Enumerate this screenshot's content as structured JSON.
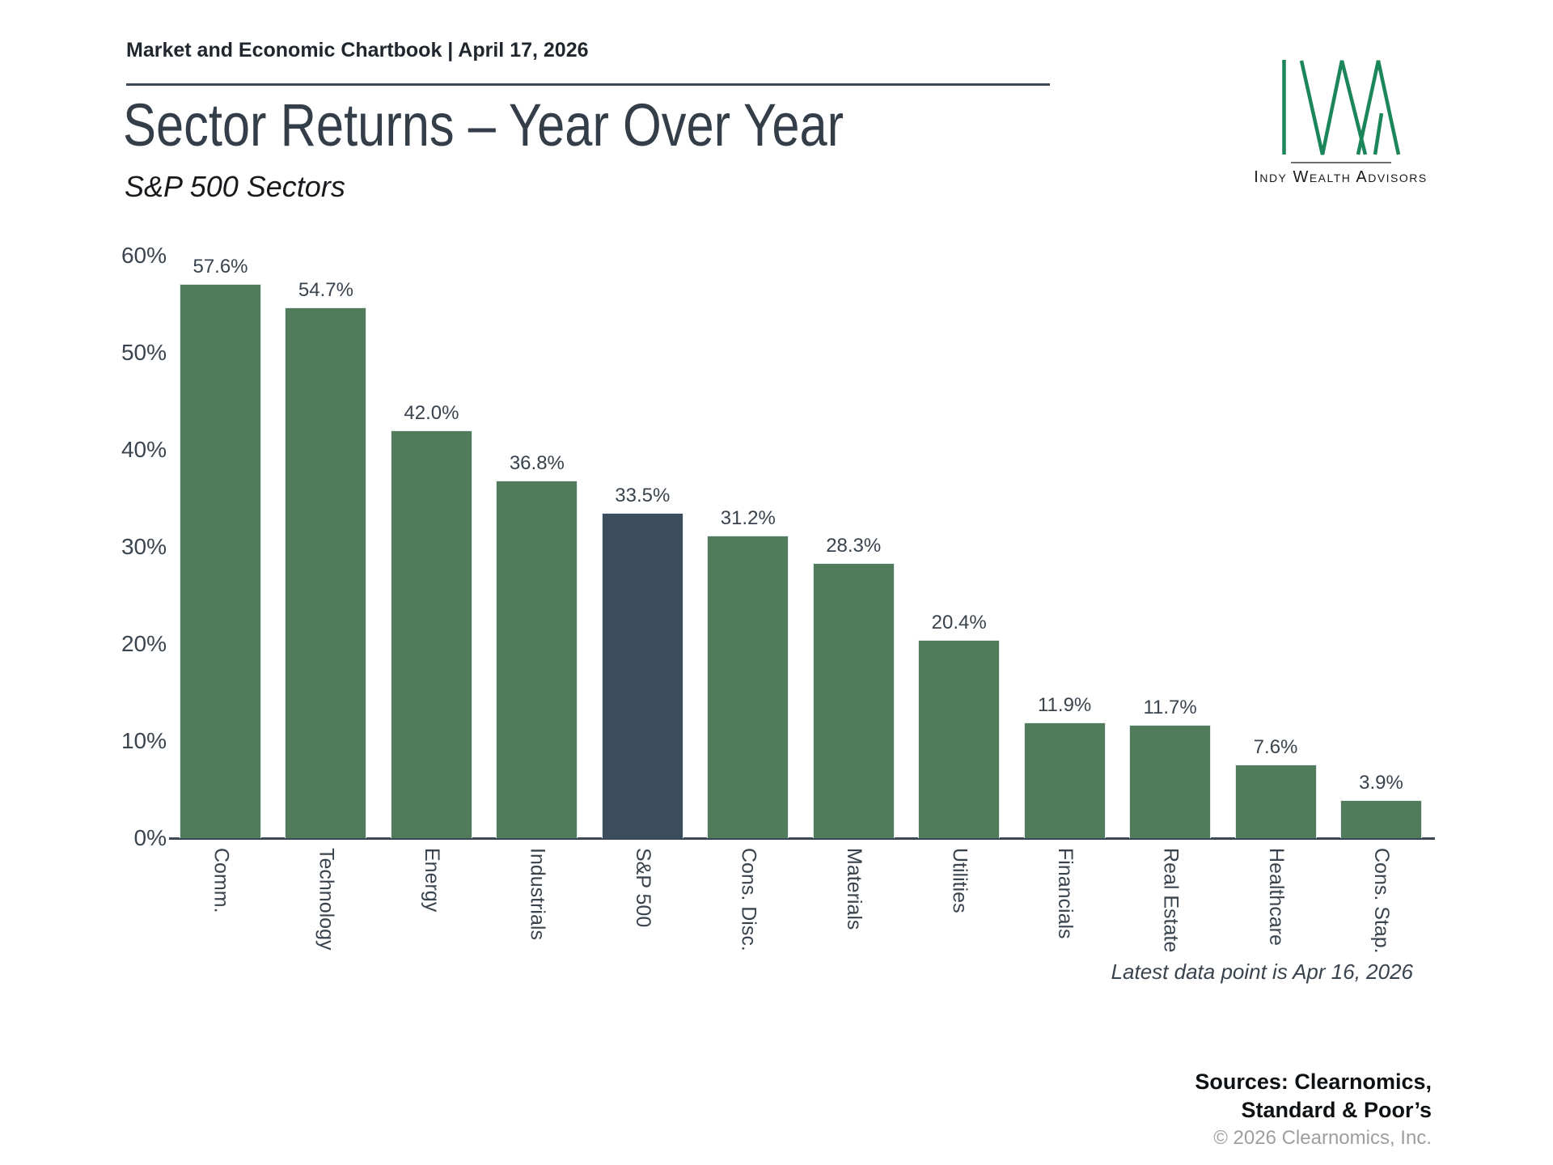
{
  "header": {
    "chartbook_label": "Market and Economic Chartbook | April 17, 2026",
    "title": "Sector Returns – Year Over Year",
    "subtitle": "S&P 500 Sectors"
  },
  "logo": {
    "monogram": "IWA",
    "name": "Indy Wealth Advisors",
    "green": "#1b8659"
  },
  "chart_data": {
    "type": "bar",
    "title": "Sector Returns – Year Over Year",
    "subtitle": "S&P 500 Sectors",
    "categories": [
      "Comm.",
      "Technology",
      "Energy",
      "Industrials",
      "S&P 500",
      "Cons. Disc.",
      "Materials",
      "Utilities",
      "Financials",
      "Real Estate",
      "Healthcare",
      "Cons. Stap."
    ],
    "values": [
      57.6,
      54.7,
      42.0,
      36.8,
      33.5,
      31.2,
      28.3,
      20.4,
      11.9,
      11.7,
      7.6,
      3.9
    ],
    "value_labels": [
      "57.6%",
      "54.7%",
      "42.0%",
      "36.8%",
      "33.5%",
      "31.2%",
      "28.3%",
      "20.4%",
      "11.9%",
      "11.7%",
      "7.6%",
      "3.9%"
    ],
    "highlight_category": "S&P 500",
    "bar_color": "#527b5b",
    "highlight_color": "#3c4e5e",
    "xlabel": "",
    "ylabel": "",
    "ylim": [
      0,
      60
    ],
    "yticks": [
      "0%",
      "10%",
      "20%",
      "30%",
      "40%",
      "50%",
      "60%"
    ],
    "grid": false,
    "legend": false
  },
  "footnote": "Latest data point is Apr 16, 2026",
  "footer": {
    "sources_line1": "Sources: Clearnomics,",
    "sources_line2": "Standard & Poor’s",
    "copyright": "© 2026 Clearnomics, Inc."
  }
}
